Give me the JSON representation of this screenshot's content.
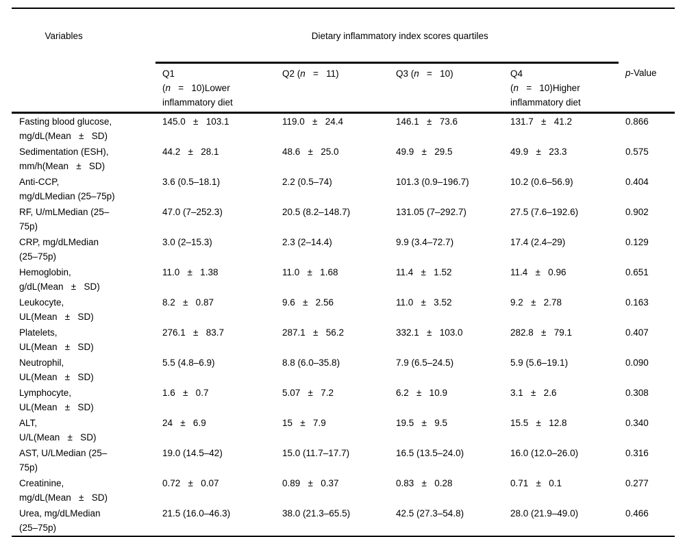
{
  "table": {
    "header": {
      "variables": "Variables",
      "quartiles_title": "Dietary inflammatory index scores quartiles",
      "q1": {
        "pre": "Q1\n(",
        "n": "n",
        "post": "   =   10)Lower\ninflammatory diet"
      },
      "q2": {
        "pre": "Q2 (",
        "n": "n",
        "post": "   =   11)"
      },
      "q3": {
        "pre": "Q3 (",
        "n": "n",
        "post": "   =   10)"
      },
      "q4": {
        "pre": "Q4\n(",
        "n": "n",
        "post": "   =   10)Higher\ninflammatory diet"
      },
      "p": {
        "pre": "p",
        "post": "-Value"
      }
    },
    "rows": [
      [
        "Fasting blood glucose,\nmg/dL(Mean   ±   SD)",
        "145.0   ±   103.1",
        "119.0   ±   24.4",
        "146.1   ±   73.6",
        "131.7   ±   41.2",
        "0.866"
      ],
      [
        "Sedimentation (ESH),\nmm/h(Mean   ±   SD)",
        "44.2   ±   28.1",
        "48.6   ±   25.0",
        "49.9   ±   29.5",
        "49.9   ±   23.3",
        "0.575"
      ],
      [
        "Anti-CCP,\nmg/dLMedian (25–75p)",
        "3.6 (0.5–18.1)",
        "2.2 (0.5–74)",
        "101.3 (0.9–196.7)",
        "10.2 (0.6–56.9)",
        "0.404"
      ],
      [
        "RF, U/mLMedian (25–\n75p)",
        "47.0 (7–252.3)",
        "20.5 (8.2–148.7)",
        "131.05 (7–292.7)",
        "27.5 (7.6–192.6)",
        "0.902"
      ],
      [
        "CRP, mg/dLMedian\n(25–75p)",
        "3.0 (2–15.3)",
        "2.3 (2–14.4)",
        "9.9 (3.4–72.7)",
        "17.4 (2.4–29)",
        "0.129"
      ],
      [
        "Hemoglobin,\ng/dL(Mean   ±   SD)",
        "11.0   ±   1.38",
        "11.0   ±   1.68",
        "11.4   ±   1.52",
        "11.4   ±   0.96",
        "0.651"
      ],
      [
        "Leukocyte,\nUL(Mean   ±   SD)",
        "8.2   ±   0.87",
        "9.6   ±   2.56",
        "11.0   ±   3.52",
        "9.2   ±   2.78",
        "0.163"
      ],
      [
        "Platelets,\nUL(Mean   ±   SD)",
        "276.1   ±   83.7",
        "287.1   ±   56.2",
        "332.1   ±   103.0",
        "282.8   ±   79.1",
        "0.407"
      ],
      [
        "Neutrophil,\nUL(Mean   ±   SD)",
        "5.5 (4.8–6.9)",
        "8.8 (6.0–35.8)",
        "7.9 (6.5–24.5)",
        "5.9 (5.6–19.1)",
        "0.090"
      ],
      [
        "Lymphocyte,\nUL(Mean   ±   SD)",
        "1.6   ±   0.7",
        "5.07   ±   7.2",
        "6.2   ±   10.9",
        "3.1   ±   2.6",
        "0.308"
      ],
      [
        "ALT,\nU/L(Mean   ±   SD)",
        "24   ±   6.9",
        "15   ±   7.9",
        "19.5   ±   9.5",
        "15.5   ±   12.8",
        "0.340"
      ],
      [
        "AST, U/LMedian (25–\n75p)",
        "19.0 (14.5–42)",
        "15.0 (11.7–17.7)",
        "16.5 (13.5–24.0)",
        "16.0 (12.0–26.0)",
        "0.316"
      ],
      [
        "Creatinine,\nmg/dL(Mean   ±   SD)",
        "0.72   ±   0.07",
        "0.89   ±   0.37",
        "0.83   ±   0.28",
        "0.71   ±   0.1",
        "0.277"
      ],
      [
        "Urea, mg/dLMedian\n(25–75p)",
        "21.5 (16.0–46.3)",
        "38.0 (21.3–65.5)",
        "42.5 (27.3–54.8)",
        "28.0 (21.9–49.0)",
        "0.466"
      ]
    ]
  }
}
